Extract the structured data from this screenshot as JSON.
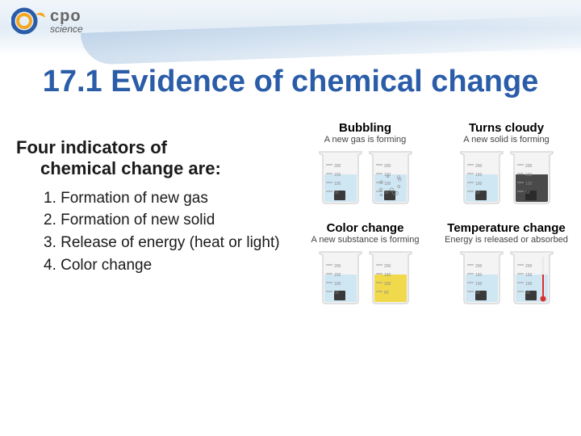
{
  "logo": {
    "brand_top": "cpo",
    "brand_bottom": "science",
    "ring_outer_color": "#2a5ca8",
    "ring_inner_color": "#f5a623"
  },
  "title": "17.1 Evidence of chemical change",
  "title_color": "#2a5ca8",
  "subheading_line1": "Four indicators of",
  "subheading_line2": "chemical change are:",
  "indicators": [
    "Formation of new gas",
    "Formation of new solid",
    "Release of energy (heat or light)",
    "Color change"
  ],
  "diagrams": [
    {
      "title": "Bubbling",
      "subtitle": "A new gas is forming",
      "before": {
        "liquid_color": "#cfe6f3",
        "feature": "cube"
      },
      "after": {
        "liquid_color": "#cfe6f3",
        "feature": "bubbles"
      }
    },
    {
      "title": "Turns cloudy",
      "subtitle": "A new solid is forming",
      "before": {
        "liquid_color": "#cfe6f3",
        "feature": "cube"
      },
      "after": {
        "liquid_color": "#4a4a4a",
        "feature": "cloudy"
      }
    },
    {
      "title": "Color change",
      "subtitle": "A new substance is forming",
      "before": {
        "liquid_color": "#cfe6f3",
        "feature": "cube"
      },
      "after": {
        "liquid_color": "#f0d94a",
        "feature": "none"
      }
    },
    {
      "title": "Temperature change",
      "subtitle": "Energy is released or absorbed",
      "before": {
        "liquid_color": "#cfe6f3",
        "feature": "cube"
      },
      "after": {
        "liquid_color": "#cfe6f3",
        "feature": "thermometer"
      }
    }
  ],
  "beaker": {
    "glass_color": "#d8d8d8",
    "scale_marks": [
      "200",
      "150",
      "100",
      "50"
    ],
    "scale_text_color": "#888"
  }
}
